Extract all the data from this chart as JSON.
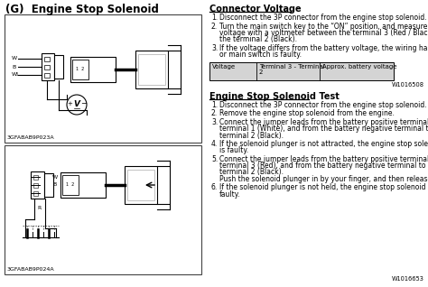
{
  "title": "(G)  Engine Stop Solenoid",
  "diagram1_label": "3GFABAB9P023A",
  "diagram2_label": "3GFABAB9P024A",
  "section1_title": "Connector Voltage",
  "section1_items": [
    "Disconnect the 3P connector from the engine stop solenoid.",
    "Turn the main switch key to the “ON” position, and measure the\nvoltage with a voltmeter between the terminal 3 (Red / Black) and\nthe terminal 2 (Black).",
    "If the voltage differs from the battery voltage, the wiring harness\nor main switch is faulty."
  ],
  "table_col1": "Voltage",
  "table_col2": "Terminal 3 - Terminal\n2",
  "table_col3": "Approx. battery voltage",
  "table_ref": "W1016508",
  "section2_title": "Engine Stop Solenoid Test",
  "section2_items": [
    "Disconnect the 3P connector from the engine stop solenoid.",
    "Remove the engine stop solenoid from the engine.",
    "Connect the jumper leads from the battery positive terminal to the\nterminal 1 (White), and from the battery negative terminal to the\nterminal 2 (Black).",
    "If the solenoid plunger is not attracted, the engine stop solenoid\nis faulty.",
    "Connect the jumper leads from the battery positive terminal to the\nterminal 3 (Red), and from the battery negative terminal to the\nterminal 2 (Black).\nPush the solenoid plunger in by your finger, and then release it.",
    "If the solenoid plunger is not held, the engine stop solenoid is\nfaulty."
  ],
  "section2_ref": "W1016653"
}
